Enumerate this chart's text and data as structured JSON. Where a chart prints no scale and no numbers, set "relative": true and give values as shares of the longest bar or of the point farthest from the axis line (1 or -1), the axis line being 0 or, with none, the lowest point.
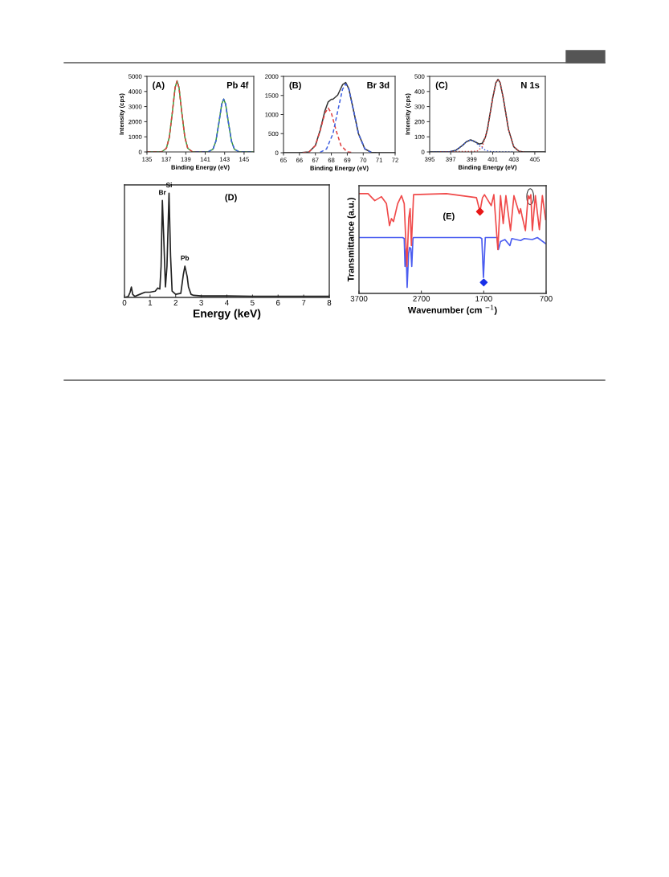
{
  "chart_data": [
    {
      "type": "line",
      "xlabel": "Binding Energy (eV)",
      "ylabel": "Intensity (cps)",
      "annotations": [
        "(A)",
        "Pb 4f"
      ],
      "xlim": [
        135,
        146
      ],
      "xticks": [
        135,
        137,
        139,
        141,
        143,
        145
      ],
      "ylim": [
        0,
        5000
      ],
      "yticks": [
        0,
        1000,
        2000,
        3000,
        4000,
        5000
      ],
      "grid": false,
      "legend": false,
      "series": [
        {
          "color": "#e04040",
          "line_style": "dashed",
          "x": [
            135,
            136.5,
            137.0,
            137.3,
            137.6,
            137.9,
            138.1,
            138.3,
            138.6,
            138.9,
            139.2,
            139.7,
            141
          ],
          "values": [
            0,
            0,
            240,
            970,
            2540,
            4260,
            4700,
            4260,
            2540,
            970,
            240,
            0,
            0
          ]
        },
        {
          "color": "#4060e0",
          "line_style": "dashed",
          "x": [
            140,
            141.3,
            141.8,
            142.1,
            142.4,
            142.7,
            142.9,
            143.1,
            143.4,
            143.7,
            144.0,
            144.5,
            146
          ],
          "values": [
            0,
            0,
            180,
            720,
            1890,
            3170,
            3500,
            3170,
            1890,
            720,
            180,
            0,
            0
          ]
        },
        {
          "color": "#3a9a3a",
          "line_style": "solid",
          "x": [
            135,
            136.5,
            137.0,
            137.3,
            137.6,
            137.9,
            138.1,
            138.3,
            138.6,
            138.9,
            139.2,
            139.7,
            141.3,
            141.8,
            142.1,
            142.4,
            142.7,
            142.9,
            143.1,
            143.4,
            143.7,
            144.0,
            144.5,
            146
          ],
          "values": [
            0,
            0,
            240,
            970,
            2540,
            4260,
            4700,
            4260,
            2540,
            970,
            240,
            0,
            0,
            180,
            720,
            1890,
            3170,
            3500,
            3170,
            1890,
            720,
            180,
            0,
            0
          ]
        }
      ]
    },
    {
      "type": "line",
      "xlabel": "Binding Energy (eV)",
      "annotations": [
        "(B)",
        "Br 3d"
      ],
      "xlim": [
        65,
        72
      ],
      "xticks": [
        65,
        66,
        67,
        68,
        69,
        70,
        71,
        72
      ],
      "ylim": [
        0,
        2000
      ],
      "yticks": [
        0,
        500,
        1000,
        1500,
        2000
      ],
      "grid": false,
      "legend": false,
      "series": [
        {
          "color": "#e04040",
          "line_style": "dashed",
          "x": [
            66.2,
            66.6,
            67.0,
            67.3,
            67.6,
            67.8,
            68.0,
            68.3,
            68.6,
            69.0,
            69.4
          ],
          "values": [
            0,
            20,
            190,
            580,
            1040,
            1170,
            1040,
            580,
            190,
            20,
            0
          ]
        },
        {
          "color": "#4060e0",
          "line_style": "dashed",
          "x": [
            67.3,
            67.7,
            68.1,
            68.4,
            68.7,
            68.9,
            69.1,
            69.4,
            69.7,
            70.1,
            70.5
          ],
          "values": [
            10,
            100,
            500,
            1090,
            1660,
            1800,
            1660,
            1090,
            500,
            100,
            10
          ]
        },
        {
          "color": "#333333",
          "line_style": "solid",
          "x": [
            65,
            66,
            66.6,
            67.0,
            67.3,
            67.6,
            67.8,
            68.0,
            68.1,
            68.4,
            68.7,
            68.9,
            69.1,
            69.4,
            69.7,
            70.1,
            70.5,
            71,
            72
          ],
          "values": [
            0,
            0,
            20,
            190,
            590,
            1100,
            1330,
            1400,
            1400,
            1510,
            1780,
            1840,
            1670,
            1090,
            500,
            100,
            10,
            0,
            0
          ]
        }
      ]
    },
    {
      "type": "line",
      "xlabel": "Binding Energy (eV)",
      "ylabel": "Intensity (cps)",
      "annotations": [
        "(C)",
        "N 1s"
      ],
      "xlim": [
        395,
        406
      ],
      "xticks": [
        395,
        397,
        399,
        401,
        403,
        405
      ],
      "ylim": [
        0,
        500
      ],
      "yticks": [
        0,
        100,
        200,
        300,
        400,
        500
      ],
      "grid": false,
      "legend": false,
      "series": [
        {
          "color": "#e04040",
          "line_style": "dotted",
          "x": [
            396,
            399.5,
            400,
            400.5,
            401,
            401.3,
            401.5,
            401.7,
            402,
            402.5,
            403,
            403.5,
            404
          ],
          "values": [
            0,
            4,
            34,
            147,
            357,
            458,
            480,
            458,
            357,
            147,
            34,
            4,
            0
          ]
        },
        {
          "color": "#4060e0",
          "line_style": "dotted",
          "x": [
            395,
            396.9,
            397.5,
            398.1,
            398.5,
            398.9,
            399.3,
            399.7,
            400.3,
            400.9,
            403
          ],
          "values": [
            0,
            1,
            11,
            42,
            68,
            80,
            68,
            42,
            11,
            1,
            0
          ]
        },
        {
          "color": "#333333",
          "line_style": "solid",
          "x": [
            395,
            396.9,
            397.5,
            398.1,
            398.5,
            398.9,
            399.3,
            399.7,
            400,
            400.3,
            400.5,
            401,
            401.3,
            401.5,
            401.7,
            402,
            402.5,
            403,
            403.5,
            404,
            406
          ],
          "values": [
            0,
            1,
            11,
            42,
            68,
            80,
            68,
            52,
            57,
            98,
            153,
            358,
            458,
            480,
            458,
            357,
            147,
            34,
            4,
            0,
            0
          ]
        }
      ]
    },
    {
      "type": "line",
      "relative": true,
      "xlabel": "Energy (keV)",
      "xlim": [
        0,
        8
      ],
      "xticks": [
        0,
        1,
        2,
        3,
        4,
        5,
        6,
        7,
        8
      ],
      "grid": false,
      "legend": false,
      "annotations": [
        "(D)",
        {
          "text": "Br",
          "x": 1.48,
          "y": 0.93
        },
        {
          "text": "Si",
          "x": 1.74,
          "y": 1.0
        },
        {
          "text": "Pb",
          "x": 2.36,
          "y": 0.3
        }
      ],
      "series": [
        {
          "color": "#222222",
          "line_style": "solid",
          "x": [
            0,
            0.15,
            0.22,
            0.27,
            0.32,
            0.4,
            0.6,
            0.8,
            1.0,
            1.2,
            1.3,
            1.38,
            1.43,
            1.48,
            1.53,
            1.6,
            1.66,
            1.74,
            1.8,
            1.86,
            2.0,
            2.2,
            2.3,
            2.36,
            2.45,
            2.5,
            2.6,
            2.7,
            3,
            4,
            5,
            6,
            7,
            8
          ],
          "values": [
            0.0,
            0.01,
            0.05,
            0.1,
            0.03,
            0.01,
            0.03,
            0.05,
            0.05,
            0.06,
            0.09,
            0.08,
            0.3,
            0.93,
            0.6,
            0.1,
            0.3,
            1.0,
            0.4,
            0.06,
            0.03,
            0.04,
            0.22,
            0.3,
            0.2,
            0.1,
            0.03,
            0.02,
            0.015,
            0.015,
            0.01,
            0.01,
            0.01,
            0.01
          ]
        }
      ]
    },
    {
      "type": "line",
      "relative": true,
      "xlabel": "Wavenumber (cm $^{−1}$)",
      "ylabel": "Transmittance (a.u.)",
      "xlim": [
        3700,
        700
      ],
      "xticks": [
        3700,
        2700,
        1700,
        700
      ],
      "grid": false,
      "legend": false,
      "annotations": [
        "(E)"
      ],
      "series": [
        {
          "color": "#4a5cf0",
          "line_style": "solid",
          "x": [
            3700,
            3000,
            2975,
            2962,
            2945,
            2928,
            2905,
            2889,
            2870,
            2854,
            2835,
            2825,
            1760,
            1731,
            1705,
            1675,
            1486,
            1465,
            1431,
            1360,
            1281,
            1250,
            1109,
            1050,
            921,
            840,
            708
          ],
          "values": [
            0.56,
            0.56,
            0.55,
            0.27,
            0.45,
            0.06,
            0.4,
            0.46,
            0.45,
            0.27,
            0.55,
            0.56,
            0.56,
            0.55,
            0.16,
            0.56,
            0.56,
            0.44,
            0.52,
            0.54,
            0.48,
            0.55,
            0.53,
            0.55,
            0.54,
            0.56,
            0.5
          ]
        },
        {
          "color": "#f04a4a",
          "line_style": "solid",
          "x": [
            3700,
            3555,
            3447,
            3340,
            3260,
            3211,
            3180,
            3147,
            3080,
            3018,
            2975,
            2932,
            2902,
            2880,
            2860,
            2825,
            2300,
            1817,
            1761,
            1720,
            1688,
            1580,
            1538,
            1474,
            1431,
            1388,
            1345,
            1271,
            1216,
            1130,
            1109,
            1087,
            1032,
            988,
            967,
            945,
            921,
            873,
            808,
            760,
            708
          ],
          "values": [
            1.0,
            1.0,
            0.93,
            0.97,
            0.9,
            0.68,
            0.75,
            0.72,
            0.9,
            0.98,
            0.9,
            0.27,
            0.75,
            0.85,
            0.48,
            0.99,
            1.0,
            0.96,
            0.82,
            0.96,
            0.99,
            0.88,
            0.99,
            0.44,
            0.98,
            0.7,
            0.98,
            0.63,
            0.98,
            0.8,
            0.85,
            0.78,
            0.63,
            0.98,
            0.95,
            0.99,
            0.63,
            0.98,
            0.64,
            0.98,
            0.74
          ]
        },
        {
          "type": "scatter",
          "marker": "diamond",
          "color": "#e81818",
          "x": [
            1761
          ],
          "values": [
            0.82
          ]
        },
        {
          "type": "scatter",
          "marker": "diamond",
          "color": "#1830e8",
          "x": [
            1700
          ],
          "values": [
            0.11
          ]
        }
      ]
    }
  ]
}
